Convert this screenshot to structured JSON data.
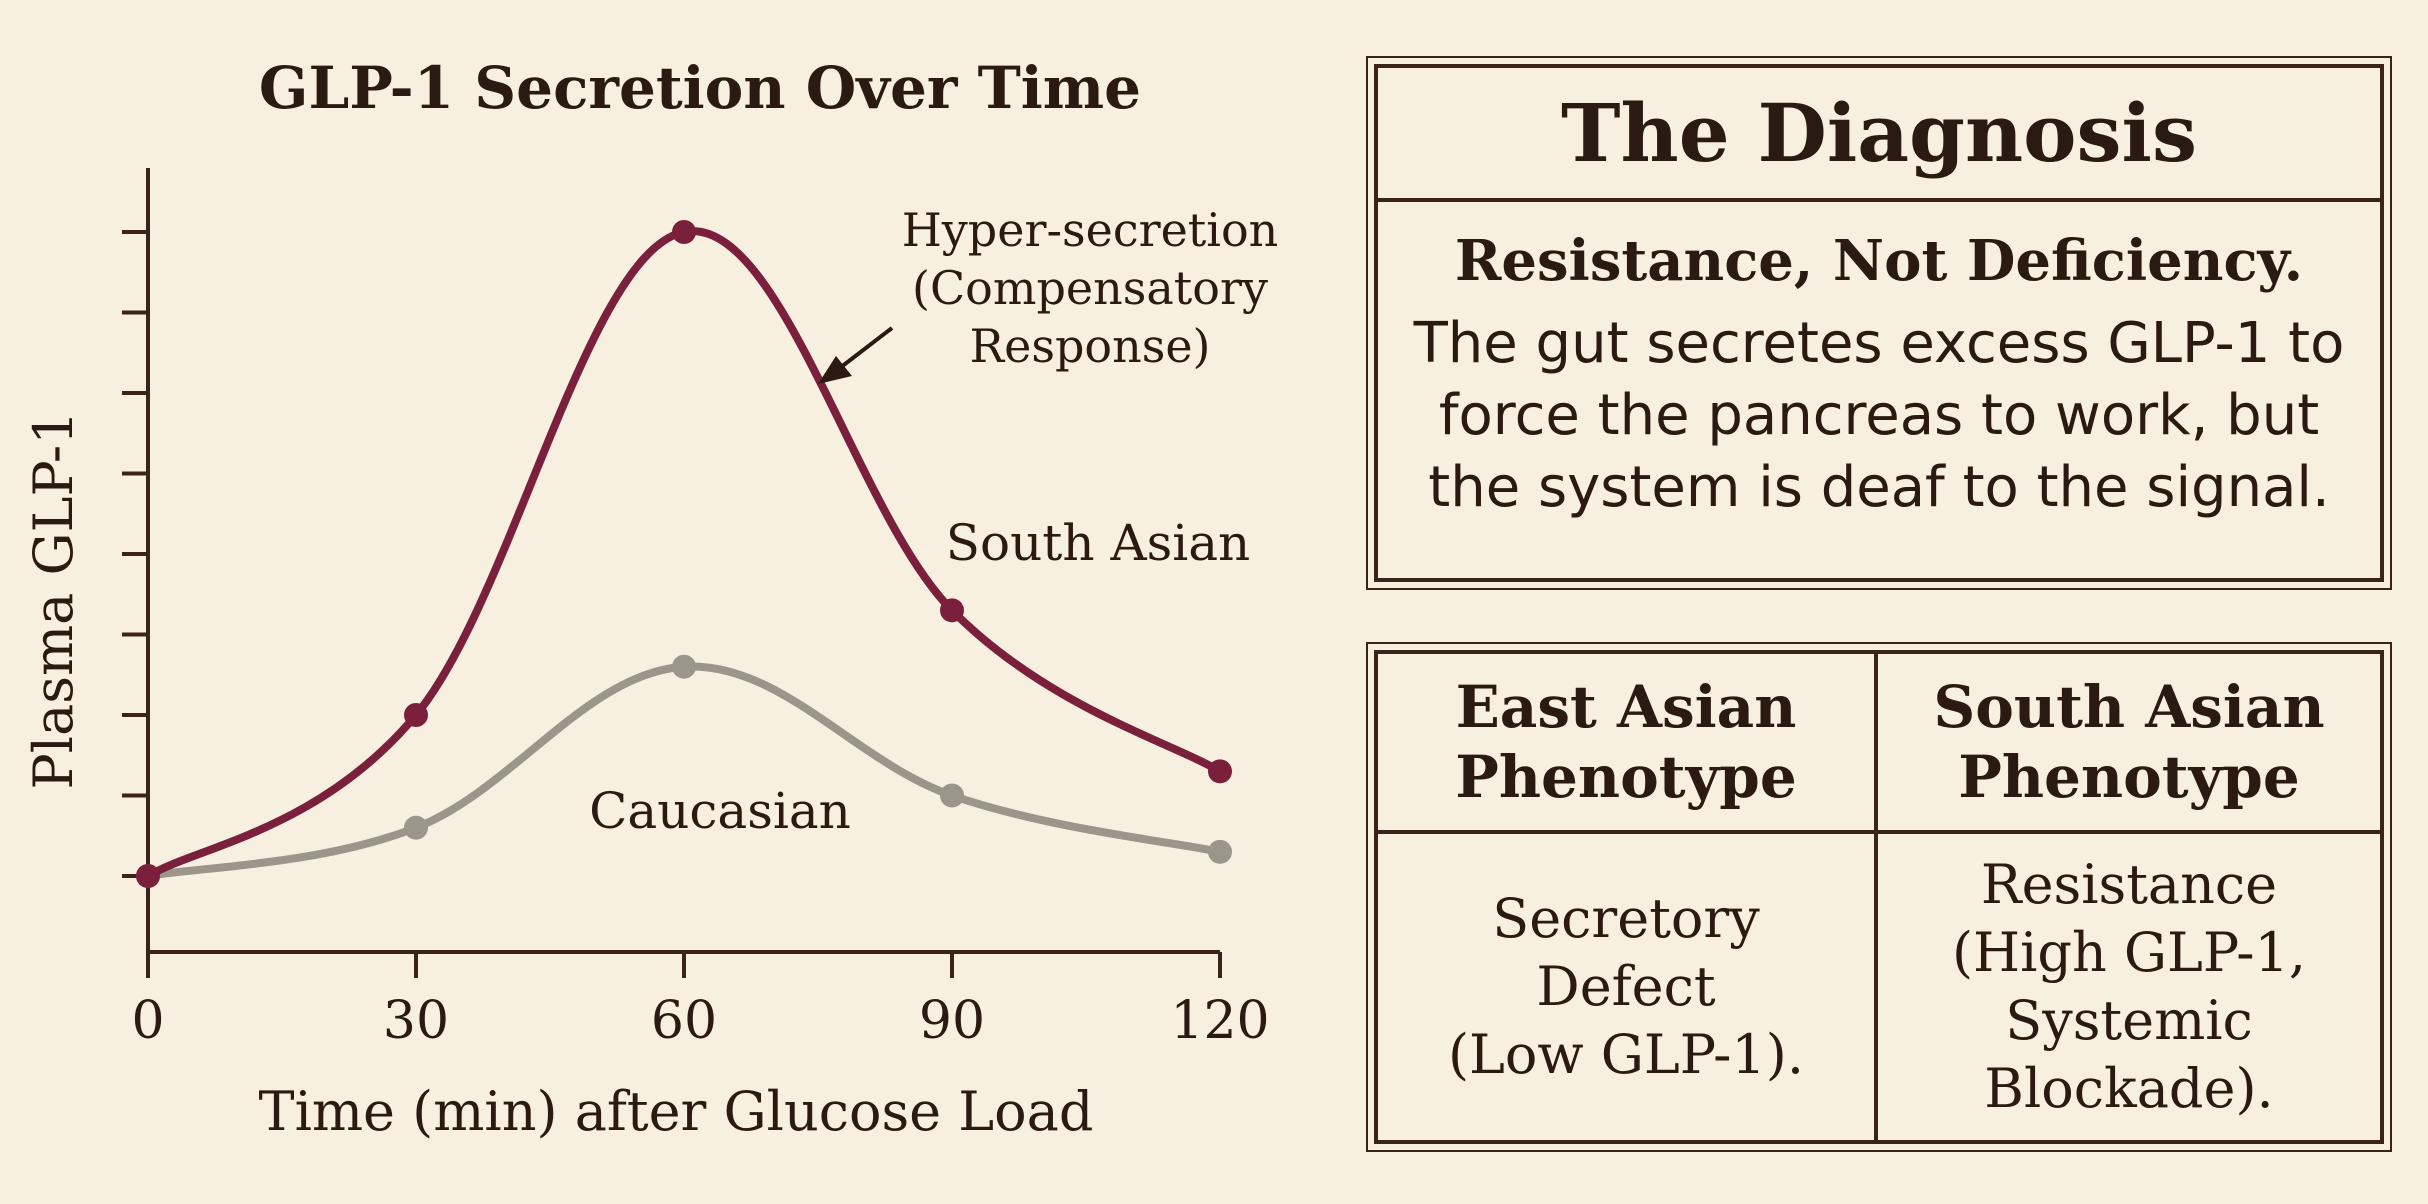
{
  "chart_data": {
    "type": "line",
    "title": "GLP-1 Secretion Over Time",
    "xlabel": "Time (min) after Glucose Load",
    "ylabel": "Plasma GLP-1",
    "x": [
      0,
      30,
      60,
      90,
      120
    ],
    "xlim": [
      0,
      120
    ],
    "ylim": [
      -1,
      9
    ],
    "yticks": [
      0,
      1,
      2,
      3,
      4,
      5,
      6,
      7,
      8
    ],
    "series": [
      {
        "name": "South Asian",
        "color": "#7a1f3c",
        "values": [
          0,
          2,
          8,
          3.3,
          1.3
        ]
      },
      {
        "name": "Caucasian",
        "color": "#9b958a",
        "values": [
          0,
          0.6,
          2.6,
          1,
          0.3
        ]
      }
    ],
    "annotation": {
      "lines": [
        "Hyper-secretion",
        "(Compensatory",
        "Response)"
      ]
    }
  },
  "diagnosis": {
    "title": "The Diagnosis",
    "subtitle": "Resistance, Not Deficiency.",
    "body_lines": [
      "The gut secretes excess GLP-1 to",
      "force the pancreas to work, but",
      "the system is deaf to the signal."
    ]
  },
  "phenotypes": {
    "east": {
      "header_lines": [
        "East Asian",
        "Phenotype"
      ],
      "body_lines": [
        "Secretory",
        "Defect",
        "(Low GLP-1)."
      ]
    },
    "south": {
      "header_lines": [
        "South Asian",
        "Phenotype"
      ],
      "body_lines": [
        "Resistance",
        "(High GLP-1,",
        "Systemic",
        "Blockade)."
      ]
    }
  }
}
